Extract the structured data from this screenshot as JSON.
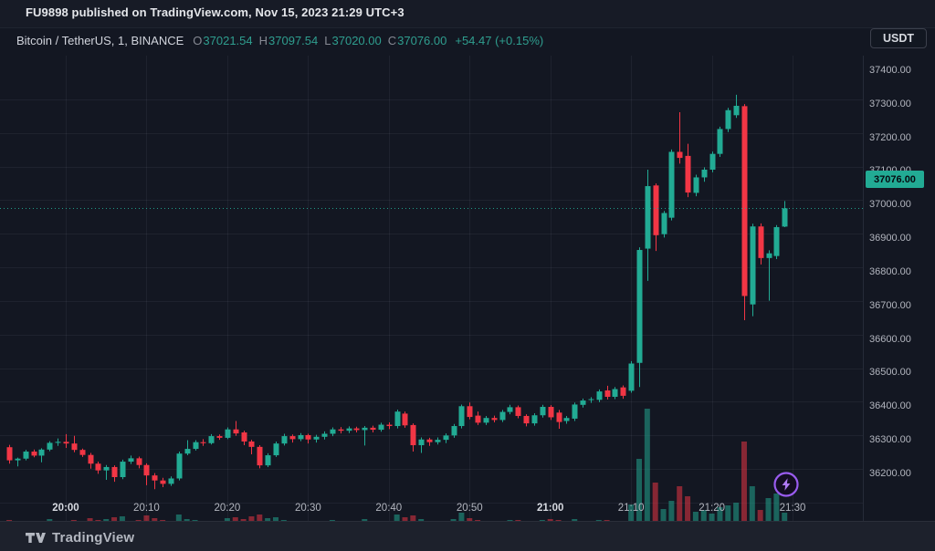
{
  "attribution": {
    "text": "FU9898 published on TradingView.com, Nov 15, 2023 21:29 UTC+3"
  },
  "symbol_bar": {
    "title": "Bitcoin / TetherUS, 1, BINANCE",
    "fields": [
      {
        "label": "O",
        "value": "37021.54"
      },
      {
        "label": "H",
        "value": "37097.54"
      },
      {
        "label": "L",
        "value": "37020.00"
      },
      {
        "label": "C",
        "value": "37076.00"
      }
    ],
    "change": "+54.47 (+0.15%)"
  },
  "currency_badge": "USDT",
  "footer": {
    "brand": "TradingView",
    "logo_icon": "tradingview-tv-monogram"
  },
  "boost_button": {
    "icon": "lightning-bolt-icon",
    "color": "#9a5cf0"
  },
  "price_scale": {
    "labels": [
      "37400.00",
      "37300.00",
      "37200.00",
      "37100.00",
      "37000.00",
      "36900.00",
      "36800.00",
      "36700.00",
      "36600.00",
      "36500.00",
      "36400.00",
      "36300.00",
      "36200.00"
    ],
    "current": "37076.00"
  },
  "time_scale": {
    "labels": [
      {
        "text": "20:00",
        "bold": true
      },
      {
        "text": "20:10",
        "bold": false
      },
      {
        "text": "20:20",
        "bold": false
      },
      {
        "text": "20:30",
        "bold": false
      },
      {
        "text": "20:40",
        "bold": false
      },
      {
        "text": "20:50",
        "bold": false
      },
      {
        "text": "21:00",
        "bold": true
      },
      {
        "text": "21:10",
        "bold": false
      },
      {
        "text": "21:20",
        "bold": false
      },
      {
        "text": "21:30",
        "bold": false
      }
    ]
  },
  "colors": {
    "up": "#22ab94",
    "down": "#f23645",
    "value_text": "#2f9e8f",
    "grid": "rgba(240,243,250,0.055)",
    "axis_border": "#262b38",
    "price_badge_bg": "#22ab94",
    "price_badge_text": "#06090f"
  },
  "chart_data": {
    "type": "candlestick",
    "title": "Bitcoin / TetherUS, 1, BINANCE",
    "exchange": "BINANCE",
    "interval": "1 minute",
    "legend_position": "top-left",
    "grid": true,
    "y_axis": {
      "min": 36150,
      "max": 37450,
      "tick_step": 100,
      "side": "right"
    },
    "x_axis": {
      "start": "19:53",
      "end": "21:29",
      "tick_labels": [
        "20:00",
        "20:10",
        "20:20",
        "20:30",
        "20:40",
        "20:50",
        "21:00",
        "21:10",
        "21:20",
        "21:30"
      ]
    },
    "last_price": 37076.0,
    "volume_units": "relative (pixel-height estimate, max=128)",
    "columns": [
      "time",
      "open",
      "high",
      "low",
      "close",
      "volume_relative"
    ],
    "candles": [
      [
        "19:53",
        36365,
        36372,
        36316,
        36326,
        6
      ],
      [
        "19:54",
        36326,
        36334,
        36308,
        36331,
        4
      ],
      [
        "19:55",
        36331,
        36357,
        36326,
        36352,
        5
      ],
      [
        "19:56",
        36352,
        36358,
        36335,
        36340,
        4
      ],
      [
        "19:57",
        36340,
        36362,
        36320,
        36358,
        5
      ],
      [
        "19:58",
        36358,
        36383,
        36353,
        36378,
        7
      ],
      [
        "19:59",
        36378,
        36391,
        36369,
        36381,
        4
      ],
      [
        "20:00",
        36381,
        36404,
        36363,
        36376,
        5
      ],
      [
        "20:01",
        36376,
        36399,
        36350,
        36357,
        6
      ],
      [
        "20:02",
        36357,
        36361,
        36336,
        36342,
        5
      ],
      [
        "20:03",
        36342,
        36348,
        36301,
        36316,
        8
      ],
      [
        "20:04",
        36316,
        36322,
        36286,
        36296,
        6
      ],
      [
        "20:05",
        36296,
        36312,
        36268,
        36306,
        7
      ],
      [
        "20:06",
        36306,
        36311,
        36262,
        36276,
        9
      ],
      [
        "20:07",
        36276,
        36328,
        36270,
        36322,
        10
      ],
      [
        "20:08",
        36322,
        36340,
        36315,
        36332,
        5
      ],
      [
        "20:09",
        36332,
        36337,
        36302,
        36312,
        6
      ],
      [
        "20:10",
        36312,
        36317,
        36252,
        36281,
        11
      ],
      [
        "20:11",
        36281,
        36288,
        36240,
        36266,
        8
      ],
      [
        "20:12",
        36266,
        36274,
        36246,
        36256,
        6
      ],
      [
        "20:13",
        36256,
        36278,
        36250,
        36272,
        5
      ],
      [
        "20:14",
        36272,
        36352,
        36266,
        36346,
        12
      ],
      [
        "20:15",
        36346,
        36386,
        36341,
        36360,
        7
      ],
      [
        "20:16",
        36360,
        36386,
        36355,
        36380,
        6
      ],
      [
        "20:17",
        36380,
        36389,
        36369,
        36377,
        3
      ],
      [
        "20:18",
        36377,
        36404,
        36373,
        36398,
        5
      ],
      [
        "20:19",
        36398,
        36403,
        36387,
        36393,
        4
      ],
      [
        "20:20",
        36393,
        36424,
        36389,
        36418,
        8
      ],
      [
        "20:21",
        36418,
        36443,
        36399,
        36406,
        9
      ],
      [
        "20:22",
        36409,
        36414,
        36371,
        36382,
        7
      ],
      [
        "20:23",
        36382,
        36387,
        36344,
        36366,
        10
      ],
      [
        "20:24",
        36366,
        36371,
        36302,
        36311,
        12
      ],
      [
        "20:25",
        36311,
        36347,
        36306,
        36341,
        8
      ],
      [
        "20:26",
        36341,
        36382,
        36336,
        36376,
        9
      ],
      [
        "20:27",
        36376,
        36405,
        36370,
        36398,
        6
      ],
      [
        "20:28",
        36398,
        36403,
        36379,
        36389,
        4
      ],
      [
        "20:29",
        36389,
        36407,
        36383,
        36401,
        4
      ],
      [
        "20:30",
        36401,
        36405,
        36376,
        36388,
        5
      ],
      [
        "20:31",
        36388,
        36402,
        36379,
        36396,
        4
      ],
      [
        "20:32",
        36396,
        36412,
        36388,
        36405,
        5
      ],
      [
        "20:33",
        36405,
        36424,
        36398,
        36418,
        6
      ],
      [
        "20:34",
        36418,
        36425,
        36406,
        36414,
        3
      ],
      [
        "20:35",
        36414,
        36427,
        36407,
        36421,
        3
      ],
      [
        "20:36",
        36421,
        36426,
        36409,
        36416,
        4
      ],
      [
        "20:37",
        36416,
        36428,
        36370,
        36423,
        7
      ],
      [
        "20:38",
        36423,
        36429,
        36409,
        36417,
        3
      ],
      [
        "20:39",
        36417,
        36438,
        36411,
        36432,
        5
      ],
      [
        "20:40",
        36432,
        36439,
        36419,
        36428,
        4
      ],
      [
        "20:41",
        36428,
        36477,
        36421,
        36471,
        12
      ],
      [
        "20:42",
        36465,
        36471,
        36423,
        36430,
        9
      ],
      [
        "20:43",
        36431,
        36436,
        36352,
        36371,
        11
      ],
      [
        "20:44",
        36371,
        36394,
        36348,
        36388,
        7
      ],
      [
        "20:45",
        36388,
        36393,
        36369,
        36380,
        4
      ],
      [
        "20:46",
        36380,
        36394,
        36373,
        36387,
        4
      ],
      [
        "20:47",
        36387,
        36406,
        36377,
        36400,
        5
      ],
      [
        "20:48",
        36400,
        36434,
        36393,
        36428,
        7
      ],
      [
        "20:49",
        36428,
        36492,
        36421,
        36487,
        14
      ],
      [
        "20:50",
        36487,
        36498,
        36448,
        36455,
        8
      ],
      [
        "20:51",
        36459,
        36471,
        36431,
        36438,
        6
      ],
      [
        "20:52",
        36438,
        36458,
        36431,
        36452,
        5
      ],
      [
        "20:53",
        36452,
        36459,
        36439,
        36446,
        4
      ],
      [
        "20:54",
        36446,
        36476,
        36440,
        36470,
        5
      ],
      [
        "20:55",
        36470,
        36491,
        36463,
        36484,
        6
      ],
      [
        "20:56",
        36484,
        36489,
        36451,
        36458,
        6
      ],
      [
        "20:57",
        36458,
        36463,
        36427,
        36436,
        5
      ],
      [
        "20:58",
        36436,
        36466,
        36429,
        36460,
        5
      ],
      [
        "20:59",
        36460,
        36491,
        36453,
        36485,
        6
      ],
      [
        "21:00",
        36485,
        36490,
        36446,
        36454,
        7
      ],
      [
        "21:01",
        36468,
        36476,
        36420,
        36440,
        6
      ],
      [
        "21:02",
        36443,
        36458,
        36435,
        36452,
        4
      ],
      [
        "21:03",
        36450,
        36498,
        36443,
        36492,
        7
      ],
      [
        "21:04",
        36491,
        36510,
        36483,
        36504,
        5
      ],
      [
        "21:05",
        36506,
        36514,
        36497,
        36508,
        3
      ],
      [
        "21:06",
        36506,
        36537,
        36499,
        36531,
        6
      ],
      [
        "21:07",
        36534,
        36548,
        36507,
        36515,
        6
      ],
      [
        "21:08",
        36515,
        36544,
        36508,
        36538,
        5
      ],
      [
        "21:09",
        36543,
        36549,
        36509,
        36518,
        4
      ],
      [
        "21:10",
        36533,
        36621,
        36527,
        36614,
        23
      ],
      [
        "21:11",
        36616,
        36960,
        36544,
        36952,
        73
      ],
      [
        "21:12",
        36956,
        37191,
        36860,
        37142,
        128
      ],
      [
        "21:13",
        37144,
        37150,
        36949,
        36996,
        47
      ],
      [
        "21:14",
        36999,
        37068,
        36989,
        37062,
        18
      ],
      [
        "21:15",
        37048,
        37251,
        37040,
        37244,
        27
      ],
      [
        "21:16",
        37244,
        37362,
        37209,
        37226,
        43
      ],
      [
        "21:17",
        37232,
        37268,
        37109,
        37123,
        32
      ],
      [
        "21:18",
        37122,
        37176,
        37112,
        37168,
        15
      ],
      [
        "21:19",
        37168,
        37198,
        37155,
        37191,
        17
      ],
      [
        "21:20",
        37191,
        37245,
        37183,
        37238,
        13
      ],
      [
        "21:21",
        37238,
        37319,
        37229,
        37312,
        20
      ],
      [
        "21:22",
        37312,
        37375,
        37303,
        37368,
        22
      ],
      [
        "21:23",
        37353,
        37414,
        37345,
        37381,
        25
      ],
      [
        "21:24",
        37380,
        37386,
        36743,
        36815,
        92
      ],
      [
        "21:25",
        36790,
        37030,
        36755,
        37022,
        43
      ],
      [
        "21:26",
        37022,
        37031,
        36909,
        36928,
        17
      ],
      [
        "21:27",
        36928,
        36951,
        36801,
        36942,
        30
      ],
      [
        "21:28",
        36934,
        37026,
        36925,
        37020,
        35
      ],
      [
        "21:29",
        37021.54,
        37097.54,
        37020.0,
        37076.0,
        14
      ]
    ]
  }
}
